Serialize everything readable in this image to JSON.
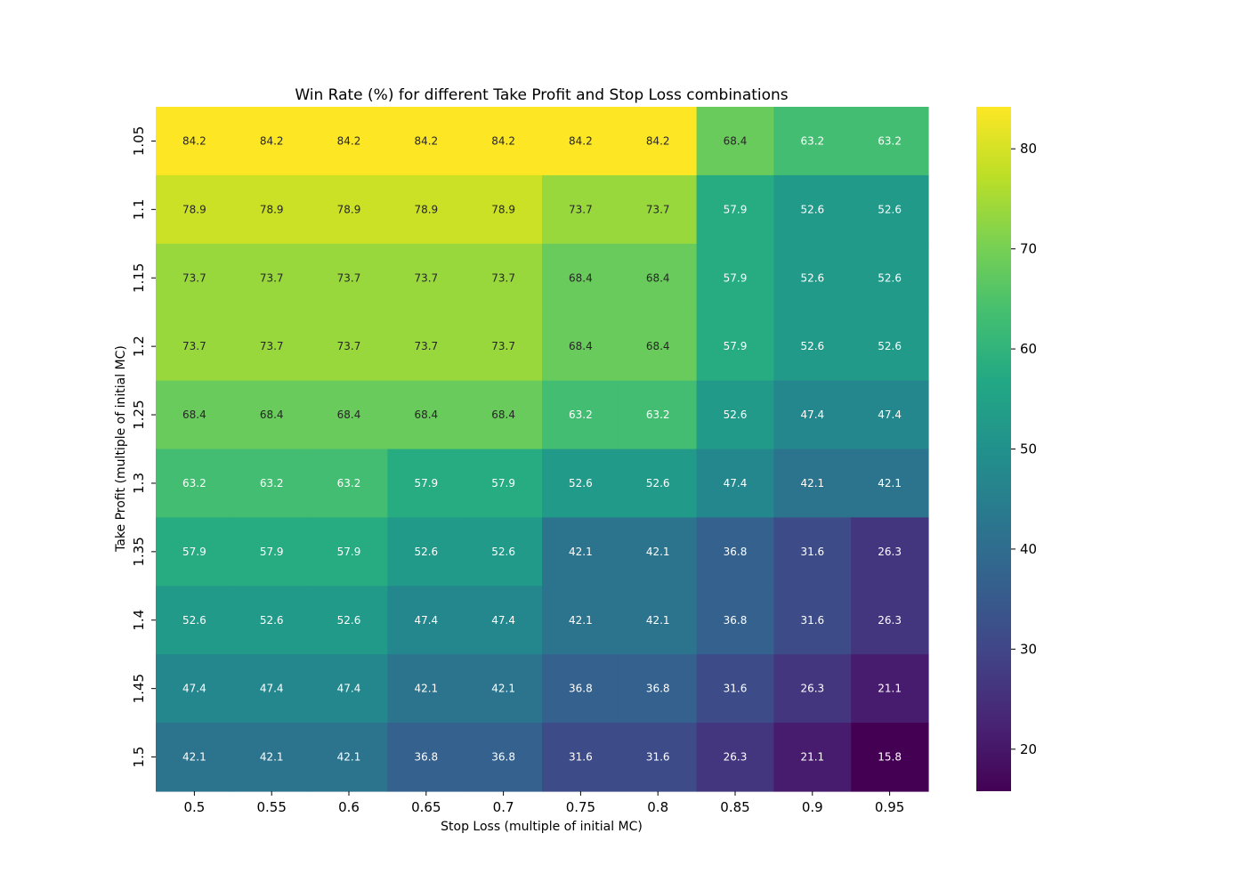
{
  "chart_data": {
    "type": "heatmap",
    "title": "Win Rate (%) for different Take Profit and Stop Loss combinations",
    "xlabel": "Stop Loss (multiple of initial MC)",
    "ylabel": "Take Profit (multiple of initial MC)",
    "x_categories": [
      "0.5",
      "0.55",
      "0.6",
      "0.65",
      "0.7",
      "0.75",
      "0.8",
      "0.85",
      "0.9",
      "0.95"
    ],
    "y_categories": [
      "1.05",
      "1.1",
      "1.15",
      "1.2",
      "1.25",
      "1.3",
      "1.35",
      "1.4",
      "1.45",
      "1.5"
    ],
    "values": [
      [
        84.2,
        84.2,
        84.2,
        84.2,
        84.2,
        84.2,
        84.2,
        68.4,
        63.2,
        63.2
      ],
      [
        78.9,
        78.9,
        78.9,
        78.9,
        78.9,
        73.7,
        73.7,
        57.9,
        52.6,
        52.6
      ],
      [
        73.7,
        73.7,
        73.7,
        73.7,
        73.7,
        68.4,
        68.4,
        57.9,
        52.6,
        52.6
      ],
      [
        73.7,
        73.7,
        73.7,
        73.7,
        73.7,
        68.4,
        68.4,
        57.9,
        52.6,
        52.6
      ],
      [
        68.4,
        68.4,
        68.4,
        68.4,
        68.4,
        63.2,
        63.2,
        52.6,
        47.4,
        47.4
      ],
      [
        63.2,
        63.2,
        63.2,
        57.9,
        57.9,
        52.6,
        52.6,
        47.4,
        42.1,
        42.1
      ],
      [
        57.9,
        57.9,
        57.9,
        52.6,
        52.6,
        42.1,
        42.1,
        36.8,
        31.6,
        26.3
      ],
      [
        52.6,
        52.6,
        52.6,
        47.4,
        47.4,
        42.1,
        42.1,
        36.8,
        31.6,
        26.3
      ],
      [
        47.4,
        47.4,
        47.4,
        42.1,
        42.1,
        36.8,
        36.8,
        31.6,
        26.3,
        21.1
      ],
      [
        42.1,
        42.1,
        42.1,
        36.8,
        36.8,
        31.6,
        31.6,
        26.3,
        21.1,
        15.8
      ]
    ],
    "colormap": "viridis",
    "value_range": [
      15.8,
      84.2
    ],
    "colorbar_ticks": [
      20,
      30,
      40,
      50,
      60,
      70,
      80
    ],
    "grid": false,
    "colorbar_position": "right"
  }
}
